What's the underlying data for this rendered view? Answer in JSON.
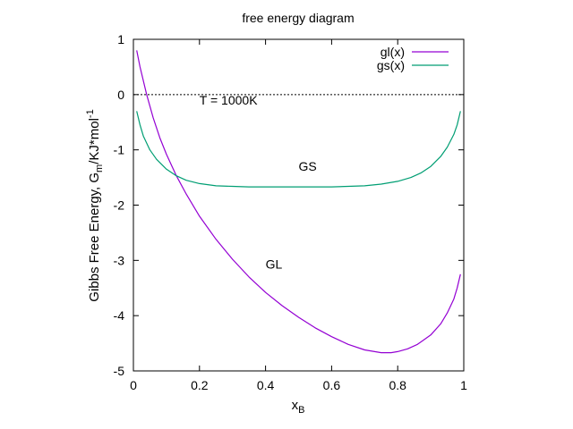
{
  "chart_data": {
    "type": "line",
    "title": "free energy diagram",
    "xlabel": {
      "main": "x",
      "sub": "B"
    },
    "ylabel": {
      "pre": "Gibbs Free Energy, G",
      "sub": "m",
      "mid": "/KJ*mol",
      "sup": "-1"
    },
    "xlim": [
      0,
      1
    ],
    "ylim": [
      -5,
      1
    ],
    "xticks": [
      0,
      0.2,
      0.4,
      0.6,
      0.8,
      1
    ],
    "xtick_labels": [
      "0",
      "0.2",
      "0.4",
      "0.6",
      "0.8",
      "1"
    ],
    "yticks": [
      -5,
      -4,
      -3,
      -2,
      -1,
      0,
      1
    ],
    "ytick_labels": [
      "-5",
      "-4",
      "-3",
      "-2",
      "-1",
      "0",
      "1"
    ],
    "grid": false,
    "legend_position": "top-right",
    "reference_line": {
      "y": 0,
      "style": "dotted",
      "color": "#000000"
    },
    "annotations": [
      {
        "text": "T = 1000K",
        "x": 0.2,
        "y": -0.18
      },
      {
        "text": "GS",
        "x": 0.5,
        "y": -1.38
      },
      {
        "text": "GL",
        "x": 0.4,
        "y": -3.15
      }
    ],
    "series": [
      {
        "name": "gl(x)",
        "color": "#9400d3",
        "x": [
          0.01,
          0.02,
          0.04,
          0.06,
          0.08,
          0.1,
          0.13,
          0.16,
          0.2,
          0.25,
          0.3,
          0.35,
          0.4,
          0.45,
          0.5,
          0.55,
          0.6,
          0.65,
          0.7,
          0.75,
          0.78,
          0.8,
          0.83,
          0.86,
          0.9,
          0.93,
          0.95,
          0.97,
          0.98,
          0.99
        ],
        "y": [
          0.8,
          0.5,
          0.0,
          -0.42,
          -0.78,
          -1.08,
          -1.47,
          -1.8,
          -2.2,
          -2.62,
          -2.98,
          -3.3,
          -3.58,
          -3.82,
          -4.03,
          -4.22,
          -4.38,
          -4.52,
          -4.62,
          -4.67,
          -4.67,
          -4.65,
          -4.6,
          -4.52,
          -4.35,
          -4.15,
          -3.95,
          -3.7,
          -3.5,
          -3.25
        ]
      },
      {
        "name": "gs(x)",
        "color": "#009e73",
        "x": [
          0.01,
          0.02,
          0.03,
          0.05,
          0.07,
          0.1,
          0.13,
          0.16,
          0.2,
          0.25,
          0.3,
          0.35,
          0.4,
          0.5,
          0.6,
          0.65,
          0.7,
          0.75,
          0.8,
          0.84,
          0.87,
          0.9,
          0.93,
          0.95,
          0.97,
          0.98,
          0.99
        ],
        "y": [
          -0.3,
          -0.55,
          -0.75,
          -1.0,
          -1.17,
          -1.35,
          -1.47,
          -1.55,
          -1.61,
          -1.65,
          -1.66,
          -1.67,
          -1.67,
          -1.67,
          -1.67,
          -1.66,
          -1.65,
          -1.62,
          -1.57,
          -1.5,
          -1.42,
          -1.3,
          -1.12,
          -0.95,
          -0.72,
          -0.55,
          -0.3
        ]
      }
    ]
  }
}
